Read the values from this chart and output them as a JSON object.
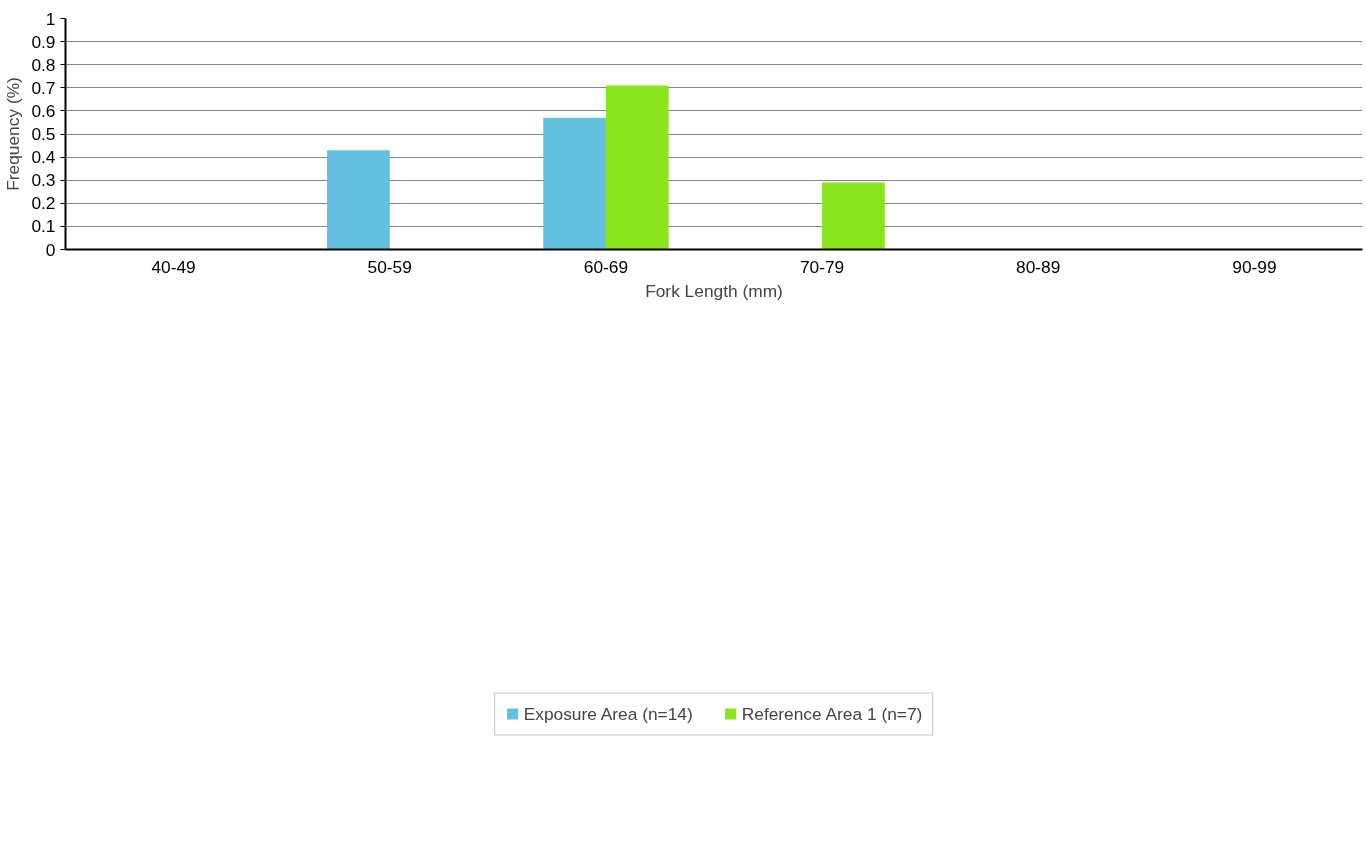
{
  "chart_data": {
    "type": "bar",
    "xlabel": "Fork Length (mm)",
    "ylabel": "Frequency (%)",
    "categories": [
      "40-49",
      "50-59",
      "60-69",
      "70-79",
      "80-89",
      "90-99"
    ],
    "series": [
      {
        "name": "Exposure Area (n=14)",
        "color": "#63c0df",
        "values": [
          0,
          0.43,
          0.57,
          0,
          0,
          0
        ]
      },
      {
        "name": "Reference Area 1 (n=7)",
        "color": "#8ae51f",
        "values": [
          0,
          0,
          0.71,
          0.29,
          0,
          0
        ]
      }
    ],
    "ylim": [
      0,
      1
    ],
    "yticks": [
      0,
      0.1,
      0.2,
      0.3,
      0.4,
      0.5,
      0.6,
      0.7,
      0.8,
      0.9,
      1
    ],
    "grid": "y",
    "legend": "bottom"
  }
}
